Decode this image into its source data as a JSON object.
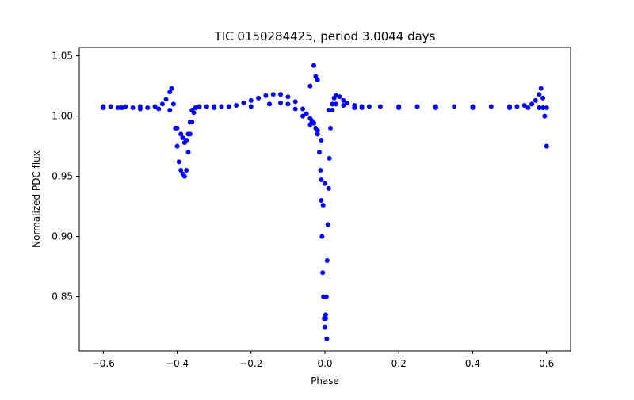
{
  "chart_data": {
    "type": "scatter",
    "title": "TIC 0150284425, period 3.0044 days",
    "xlabel": "Phase",
    "ylabel": "Normalized PDC flux",
    "xlim": [
      -0.665,
      0.665
    ],
    "ylim": [
      0.805,
      1.057
    ],
    "xticks": [
      -0.6,
      -0.4,
      -0.2,
      0.0,
      0.2,
      0.4,
      0.6
    ],
    "xtick_labels": [
      "−0.6",
      "−0.4",
      "−0.2",
      "0.0",
      "0.2",
      "0.4",
      "0.6"
    ],
    "yticks": [
      0.85,
      0.9,
      0.95,
      1.0,
      1.05
    ],
    "ytick_labels": [
      "0.85",
      "0.90",
      "0.95",
      "1.00",
      "1.05"
    ],
    "grid": false,
    "legend": "none",
    "marker_color": "#0000ff",
    "series": [
      {
        "x": [
          -0.6,
          -0.58,
          -0.56,
          -0.54,
          -0.52,
          -0.5,
          -0.48,
          -0.46,
          -0.44,
          -0.43,
          -0.42,
          -0.415,
          -0.41,
          -0.405,
          -0.4,
          -0.395,
          -0.39,
          -0.385,
          -0.38,
          -0.375,
          -0.37,
          -0.365,
          -0.36,
          -0.355,
          -0.35,
          -0.34,
          -0.32,
          -0.3,
          -0.28,
          -0.26,
          -0.24,
          -0.22,
          -0.2,
          -0.18,
          -0.16,
          -0.14,
          -0.12,
          -0.1,
          -0.08,
          -0.06,
          -0.05,
          -0.04,
          -0.035,
          -0.03,
          -0.025,
          -0.02,
          -0.015,
          -0.012,
          -0.01,
          -0.008,
          -0.006,
          -0.004,
          -0.002,
          0.0,
          0.002,
          0.004,
          0.006,
          0.008,
          0.01,
          0.012,
          0.015,
          0.02,
          0.025,
          0.03,
          0.04,
          0.05,
          0.06,
          0.08,
          0.1,
          0.12,
          0.15,
          0.2,
          0.25,
          0.3,
          0.35,
          0.4,
          0.45,
          0.5,
          0.52,
          0.54,
          0.56,
          0.57,
          0.58,
          0.585,
          0.59,
          0.595,
          0.6,
          -0.6,
          -0.55,
          -0.5,
          -0.45,
          -0.42,
          -0.4,
          -0.39,
          -0.385,
          -0.38,
          -0.375,
          -0.37,
          -0.365,
          -0.36,
          -0.35,
          -0.3,
          -0.2,
          -0.15,
          -0.12,
          -0.1,
          -0.08,
          -0.06,
          -0.04,
          -0.02,
          -0.01,
          0.01,
          0.02,
          0.03,
          0.05,
          0.08,
          0.1,
          0.2,
          0.3,
          0.4,
          0.5,
          0.55,
          0.58,
          0.59,
          0.6,
          -0.03,
          -0.025,
          -0.04,
          -0.02,
          -0.01,
          -0.005,
          0.0,
          0.005,
          0.002
        ],
        "y": [
          1.008,
          1.008,
          1.007,
          1.008,
          1.007,
          1.008,
          1.007,
          1.008,
          1.01,
          1.014,
          1.02,
          1.023,
          1.01,
          0.99,
          0.975,
          0.962,
          0.955,
          0.952,
          0.95,
          0.955,
          0.97,
          0.985,
          0.995,
          1.003,
          1.007,
          1.008,
          1.008,
          1.008,
          1.008,
          1.008,
          1.009,
          1.011,
          1.013,
          1.015,
          1.017,
          1.018,
          1.018,
          1.016,
          1.012,
          1.006,
          1.002,
          0.998,
          0.996,
          0.994,
          0.99,
          0.985,
          0.97,
          0.955,
          0.93,
          0.9,
          0.87,
          0.85,
          0.832,
          0.825,
          0.832,
          0.85,
          0.88,
          0.91,
          0.94,
          0.965,
          0.99,
          1.005,
          1.015,
          1.017,
          1.016,
          1.013,
          1.011,
          1.009,
          1.008,
          1.008,
          1.008,
          1.008,
          1.008,
          1.008,
          1.008,
          1.008,
          1.008,
          1.008,
          1.008,
          1.009,
          1.01,
          1.013,
          1.018,
          1.023,
          1.015,
          1.0,
          0.975,
          1.007,
          1.007,
          1.006,
          1.006,
          1.005,
          0.99,
          0.985,
          0.982,
          0.978,
          0.98,
          0.985,
          0.995,
          1.005,
          1.007,
          1.007,
          1.008,
          1.01,
          1.011,
          1.01,
          1.006,
          1.0,
          0.993,
          0.988,
          0.98,
          1.005,
          1.01,
          1.01,
          1.009,
          1.007,
          1.007,
          1.007,
          1.007,
          1.007,
          1.007,
          1.007,
          1.007,
          1.007,
          1.007,
          1.042,
          1.033,
          1.025,
          1.03,
          0.947,
          0.926,
          0.944,
          0.815,
          0.835
        ]
      }
    ]
  }
}
